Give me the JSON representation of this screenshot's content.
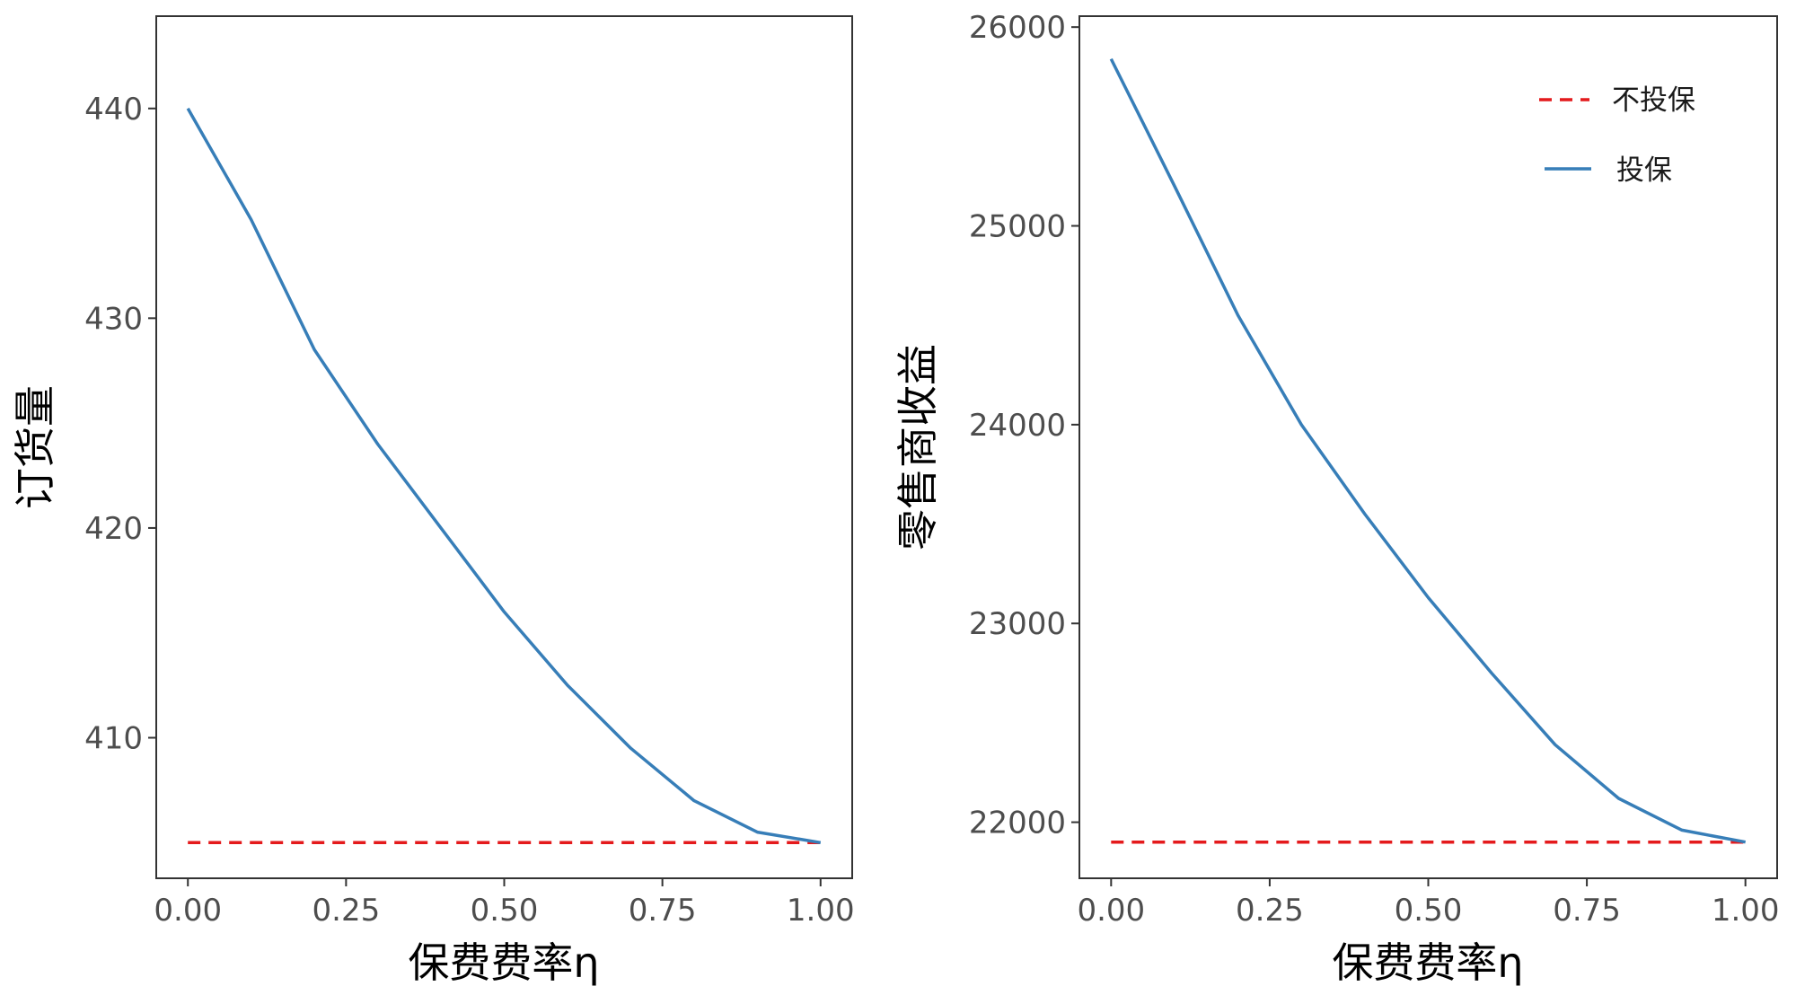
{
  "chart_data": [
    {
      "type": "line",
      "xlabel": "保费费率η",
      "ylabel": "订货量",
      "xlim": [
        -0.05,
        1.05
      ],
      "ylim": [
        403.3,
        444.4
      ],
      "x_ticks": [
        0,
        0.25,
        0.5,
        0.75,
        1
      ],
      "x_tick_labels": [
        "0.00",
        "0.25",
        "0.50",
        "0.75",
        "1.00"
      ],
      "y_ticks": [
        410,
        420,
        430,
        440
      ],
      "y_tick_labels": [
        "410",
        "420",
        "430",
        "440"
      ],
      "grid": false,
      "series": [
        {
          "name": "不投保",
          "style": "dashed",
          "color": "#e41a1c",
          "x": [
            0,
            1
          ],
          "y": [
            405,
            405
          ]
        },
        {
          "name": "投保",
          "style": "solid",
          "color": "#377eb8",
          "x": [
            0,
            0.1,
            0.2,
            0.3,
            0.4,
            0.5,
            0.6,
            0.7,
            0.8,
            0.9,
            1.0
          ],
          "y": [
            440,
            434.7,
            428.5,
            424.0,
            420.0,
            416.0,
            412.5,
            409.5,
            407.0,
            405.5,
            405.0
          ]
        }
      ]
    },
    {
      "type": "line",
      "xlabel": "保费费率η",
      "ylabel": "零售商收益",
      "xlim": [
        -0.05,
        1.05
      ],
      "ylim": [
        21718,
        26055
      ],
      "x_ticks": [
        0,
        0.25,
        0.5,
        0.75,
        1
      ],
      "x_tick_labels": [
        "0.00",
        "0.25",
        "0.50",
        "0.75",
        "1.00"
      ],
      "y_ticks": [
        22000,
        23000,
        24000,
        25000,
        26000
      ],
      "y_tick_labels": [
        "22000",
        "23000",
        "24000",
        "25000",
        "26000"
      ],
      "grid": false,
      "legend_position": "top-right",
      "series": [
        {
          "name": "不投保",
          "style": "dashed",
          "color": "#e41a1c",
          "x": [
            0,
            1
          ],
          "y": [
            21900,
            21900
          ]
        },
        {
          "name": "投保",
          "style": "solid",
          "color": "#377eb8",
          "x": [
            0,
            0.1,
            0.2,
            0.3,
            0.4,
            0.5,
            0.6,
            0.7,
            0.8,
            0.9,
            1.0
          ],
          "y": [
            25840,
            25200,
            24550,
            24000,
            23550,
            23130,
            22750,
            22390,
            22120,
            21960,
            21900
          ]
        }
      ]
    }
  ]
}
